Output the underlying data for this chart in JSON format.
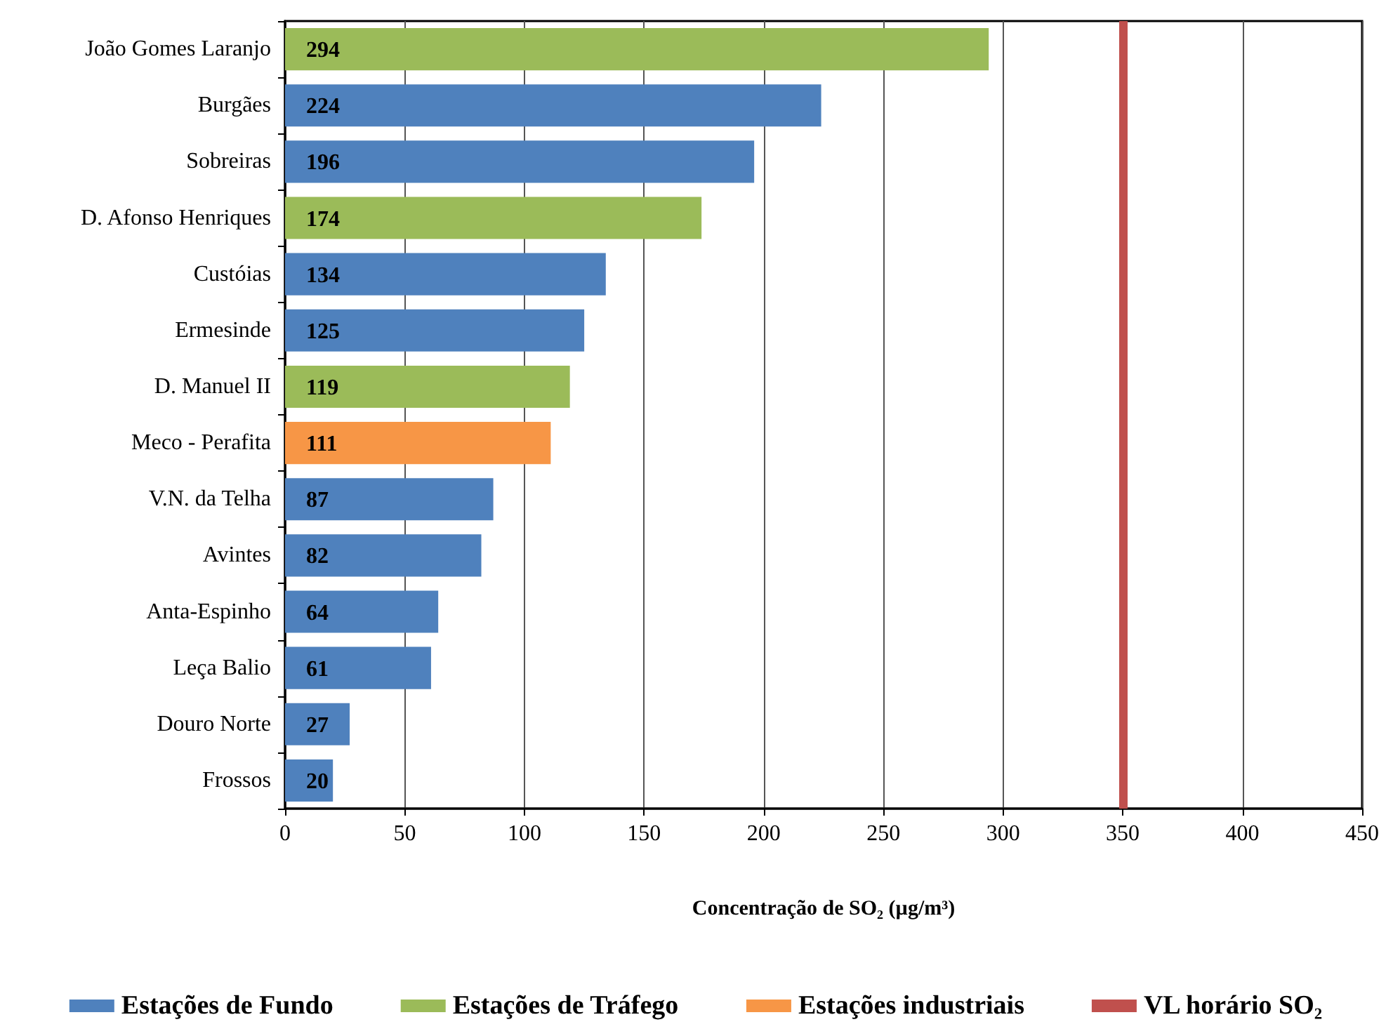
{
  "chart_data": {
    "type": "bar",
    "orientation": "horizontal",
    "xlabel": "Concentração de SO₂ (µg/m³)",
    "categories": [
      "João Gomes Laranjo",
      "Burgães",
      "Sobreiras",
      "D. Afonso Henriques",
      "Custóias",
      "Ermesinde",
      "D. Manuel II",
      "Meco - Perafita",
      "V.N. da Telha",
      "Avintes",
      "Anta-Espinho",
      "Leça Balio",
      "Douro Norte",
      "Frossos"
    ],
    "series": [
      {
        "name": "Estações de Fundo",
        "color": "#4f81bd",
        "values": [
          null,
          224,
          196,
          null,
          134,
          125,
          null,
          null,
          87,
          82,
          64,
          61,
          27,
          20
        ]
      },
      {
        "name": "Estações de Tráfego",
        "color": "#9bbb59",
        "values": [
          294,
          null,
          null,
          174,
          null,
          null,
          119,
          null,
          null,
          null,
          null,
          null,
          null,
          null
        ]
      },
      {
        "name": "Estações industriais",
        "color": "#f79646",
        "values": [
          null,
          null,
          null,
          null,
          null,
          null,
          null,
          111,
          null,
          null,
          null,
          null,
          null,
          null
        ]
      }
    ],
    "ref_lines": [
      {
        "axis": "x",
        "value": 350,
        "label": "VL horário SO₂",
        "color": "#c0504d"
      }
    ],
    "xlim": [
      0,
      450
    ],
    "xticks": [
      0,
      50,
      100,
      150,
      200,
      250,
      300,
      350,
      400,
      450
    ],
    "grid": "x",
    "legend": "bottom",
    "data_labels": true
  }
}
